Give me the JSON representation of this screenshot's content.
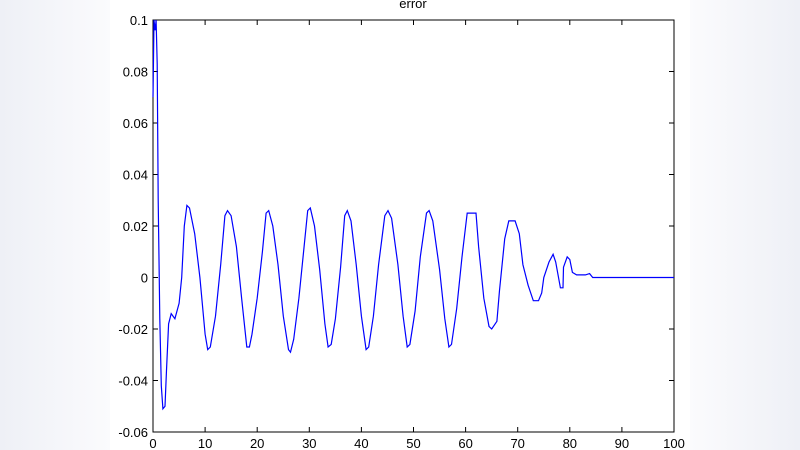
{
  "chart_data": {
    "type": "line",
    "title": "error",
    "xlabel": "",
    "ylabel": "",
    "xlim": [
      0,
      100
    ],
    "ylim": [
      -0.06,
      0.1
    ],
    "grid": false,
    "line_color": "#0000ff",
    "x_ticks": [
      "0",
      "10",
      "20",
      "30",
      "40",
      "50",
      "60",
      "70",
      "80",
      "90",
      "100"
    ],
    "y_ticks": [
      "0.1",
      "0.08",
      "0.06",
      "0.04",
      "0.02",
      "0",
      "-0.02",
      "-0.04",
      "-0.06"
    ],
    "points": [
      [
        0,
        0.07
      ],
      [
        0.2,
        0.1
      ],
      [
        0.4,
        0.096
      ],
      [
        0.6,
        0.1
      ],
      [
        0.8,
        0.083
      ],
      [
        1.0,
        0.03
      ],
      [
        1.3,
        -0.016
      ],
      [
        1.6,
        -0.042
      ],
      [
        1.9,
        -0.051
      ],
      [
        2.3,
        -0.05
      ],
      [
        2.6,
        -0.036
      ],
      [
        3.0,
        -0.018
      ],
      [
        3.5,
        -0.014
      ],
      [
        4.2,
        -0.016
      ],
      [
        5.0,
        -0.01
      ],
      [
        5.5,
        0.0
      ],
      [
        6.0,
        0.02
      ],
      [
        6.5,
        0.028
      ],
      [
        7.0,
        0.027
      ],
      [
        8.0,
        0.017
      ],
      [
        9.0,
        0.0
      ],
      [
        10.0,
        -0.022
      ],
      [
        10.5,
        -0.028
      ],
      [
        11,
        -0.027
      ],
      [
        12,
        -0.015
      ],
      [
        13,
        0.005
      ],
      [
        13.8,
        0.024
      ],
      [
        14.3,
        0.026
      ],
      [
        15,
        0.024
      ],
      [
        16,
        0.012
      ],
      [
        17,
        -0.008
      ],
      [
        18,
        -0.027
      ],
      [
        18.5,
        -0.027
      ],
      [
        19,
        -0.022
      ],
      [
        20,
        -0.008
      ],
      [
        21,
        0.01
      ],
      [
        21.7,
        0.025
      ],
      [
        22.2,
        0.026
      ],
      [
        23,
        0.02
      ],
      [
        24,
        0.005
      ],
      [
        25,
        -0.015
      ],
      [
        26,
        -0.028
      ],
      [
        26.4,
        -0.029
      ],
      [
        27,
        -0.024
      ],
      [
        28,
        -0.008
      ],
      [
        29,
        0.012
      ],
      [
        29.7,
        0.026
      ],
      [
        30.2,
        0.027
      ],
      [
        31,
        0.02
      ],
      [
        32,
        0.003
      ],
      [
        33,
        -0.018
      ],
      [
        33.6,
        -0.027
      ],
      [
        34.2,
        -0.026
      ],
      [
        35,
        -0.016
      ],
      [
        36,
        0.004
      ],
      [
        36.8,
        0.024
      ],
      [
        37.3,
        0.026
      ],
      [
        38,
        0.022
      ],
      [
        39,
        0.005
      ],
      [
        40,
        -0.015
      ],
      [
        40.9,
        -0.028
      ],
      [
        41.4,
        -0.027
      ],
      [
        42.3,
        -0.015
      ],
      [
        43.3,
        0.005
      ],
      [
        44.5,
        0.024
      ],
      [
        45.1,
        0.026
      ],
      [
        45.8,
        0.023
      ],
      [
        47,
        0.005
      ],
      [
        48,
        -0.015
      ],
      [
        48.8,
        -0.027
      ],
      [
        49.3,
        -0.026
      ],
      [
        50.3,
        -0.013
      ],
      [
        51.3,
        0.008
      ],
      [
        52.5,
        0.025
      ],
      [
        53,
        0.026
      ],
      [
        53.7,
        0.022
      ],
      [
        55,
        0.003
      ],
      [
        56,
        -0.016
      ],
      [
        56.8,
        -0.027
      ],
      [
        57.3,
        -0.026
      ],
      [
        58.3,
        -0.012
      ],
      [
        59.3,
        0.008
      ],
      [
        60.3,
        0.025
      ],
      [
        62,
        0.025
      ],
      [
        62.5,
        0.012
      ],
      [
        63.5,
        -0.008
      ],
      [
        64.5,
        -0.019
      ],
      [
        65,
        -0.02
      ],
      [
        66,
        -0.017
      ],
      [
        66.5,
        -0.005
      ],
      [
        67.5,
        0.015
      ],
      [
        68.3,
        0.022
      ],
      [
        69.5,
        0.022
      ],
      [
        70.3,
        0.017
      ],
      [
        71,
        0.005
      ],
      [
        72,
        -0.003
      ],
      [
        73,
        -0.009
      ],
      [
        74,
        -0.009
      ],
      [
        74.6,
        -0.006
      ],
      [
        75,
        0.0
      ],
      [
        76,
        0.006
      ],
      [
        76.8,
        0.009
      ],
      [
        77.3,
        0.006
      ],
      [
        78.2,
        -0.004
      ],
      [
        78.7,
        -0.004
      ],
      [
        78.8,
        0.004
      ],
      [
        79.5,
        0.008
      ],
      [
        80,
        0.007
      ],
      [
        80.5,
        0.002
      ],
      [
        81.3,
        0.001
      ],
      [
        83,
        0.001
      ],
      [
        83.8,
        0.0015
      ],
      [
        84.4,
        0.0
      ],
      [
        100,
        0.0
      ]
    ]
  }
}
